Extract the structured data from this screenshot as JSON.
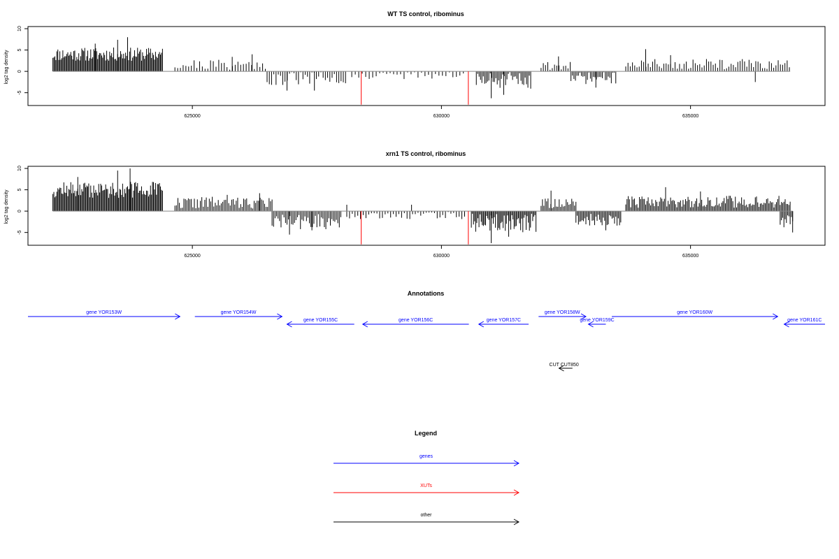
{
  "chart_data": [
    {
      "type": "bar",
      "title": "WT TS control, ribominus",
      "ylabel": "log2 tag density",
      "xlabel": "",
      "xlim": [
        621700,
        637700
      ],
      "ylim": [
        -8,
        10.5
      ],
      "yticks": [
        10,
        5,
        0,
        -5
      ],
      "ytick_labels": [
        "10",
        "5",
        "0",
        "-5"
      ],
      "xticks": [
        625000,
        630000,
        635000
      ],
      "xtick_labels": [
        "625000",
        "630000",
        "635000"
      ],
      "grid": false,
      "baseline_color": "#888888",
      "bar_color": "#000000",
      "highlight_color": "#ff0000",
      "segments": [
        {
          "start": 622200,
          "end": 624400,
          "mean": 4.0,
          "amp": 1.6,
          "step": 20,
          "seed": 11,
          "peaks": [
            [
              623700,
              8.0
            ],
            [
              623500,
              7.4
            ],
            [
              623050,
              6.5
            ]
          ]
        },
        {
          "start": 624650,
          "end": 626500,
          "mean": 1.6,
          "amp": 1.3,
          "step": 55,
          "seed": 21,
          "peaks": [
            [
              626200,
              4.0
            ],
            [
              625800,
              3.4
            ]
          ]
        },
        {
          "start": 626500,
          "end": 628100,
          "mean": -1.7,
          "amp": 1.6,
          "step": 45,
          "seed": 31,
          "peaks": [
            [
              626900,
              -4.5
            ],
            [
              627450,
              -4.5
            ]
          ]
        },
        {
          "start": 628200,
          "end": 630500,
          "mean": -0.9,
          "amp": 0.9,
          "step": 70,
          "seed": 41,
          "peaks": []
        },
        {
          "start": 630700,
          "end": 631800,
          "mean": -2.2,
          "amp": 2.0,
          "step": 28,
          "seed": 51,
          "peaks": [
            [
              631000,
              -6.3
            ],
            [
              631250,
              -5.5
            ]
          ]
        },
        {
          "start": 632000,
          "end": 632600,
          "mean": 1.3,
          "amp": 1.0,
          "step": 45,
          "seed": 61,
          "peaks": [
            [
              632350,
              3.5
            ]
          ]
        },
        {
          "start": 632600,
          "end": 633500,
          "mean": -1.6,
          "amp": 1.4,
          "step": 30,
          "seed": 71,
          "peaks": [
            [
              633100,
              -3.8
            ]
          ]
        },
        {
          "start": 633700,
          "end": 637000,
          "mean": 1.7,
          "amp": 1.2,
          "step": 45,
          "seed": 81,
          "peaks": [
            [
              634100,
              5.2
            ],
            [
              634600,
              3.8
            ],
            [
              636300,
              -2.5
            ]
          ]
        }
      ],
      "highlights": [
        {
          "x": 628390,
          "y": -7.8
        },
        {
          "x": 630540,
          "y": -7.8
        }
      ]
    },
    {
      "type": "bar",
      "title": "xrn1 TS control, ribominus",
      "ylabel": "log2 tag density",
      "xlabel": "",
      "xlim": [
        621700,
        637700
      ],
      "ylim": [
        -8,
        10.5
      ],
      "yticks": [
        10,
        5,
        0,
        -5
      ],
      "ytick_labels": [
        "10",
        "5",
        "0",
        "-5"
      ],
      "xticks": [
        625000,
        630000,
        635000
      ],
      "xtick_labels": [
        "625000",
        "630000",
        "635000"
      ],
      "grid": false,
      "baseline_color": "#888888",
      "bar_color": "#000000",
      "highlight_color": "#ff0000",
      "segments": [
        {
          "start": 622200,
          "end": 624400,
          "mean": 5.0,
          "amp": 1.9,
          "step": 20,
          "seed": 12,
          "peaks": [
            [
              623750,
              10.0
            ],
            [
              623500,
              9.5
            ],
            [
              622700,
              8.0
            ]
          ]
        },
        {
          "start": 624650,
          "end": 626600,
          "mean": 2.0,
          "amp": 1.4,
          "step": 30,
          "seed": 22,
          "peaks": [
            [
              626350,
              4.2
            ],
            [
              625700,
              3.8
            ]
          ]
        },
        {
          "start": 626600,
          "end": 628000,
          "mean": -2.5,
          "amp": 1.8,
          "step": 30,
          "seed": 32,
          "peaks": [
            [
              626950,
              -5.5
            ],
            [
              627400,
              -4.5
            ]
          ]
        },
        {
          "start": 628100,
          "end": 630500,
          "mean": -0.8,
          "amp": 1.1,
          "step": 55,
          "seed": 42,
          "peaks": [
            [
              628100,
              1.5
            ],
            [
              629400,
              1.5
            ]
          ]
        },
        {
          "start": 630600,
          "end": 631900,
          "mean": -2.8,
          "amp": 2.2,
          "step": 22,
          "seed": 52,
          "peaks": [
            [
              631000,
              -7.5
            ],
            [
              631350,
              -6.0
            ]
          ]
        },
        {
          "start": 632000,
          "end": 632700,
          "mean": 1.8,
          "amp": 1.2,
          "step": 28,
          "seed": 62,
          "peaks": [
            [
              632200,
              4.8
            ]
          ]
        },
        {
          "start": 632700,
          "end": 633600,
          "mean": -2.0,
          "amp": 1.5,
          "step": 25,
          "seed": 72,
          "peaks": [
            [
              633300,
              -4.5
            ]
          ]
        },
        {
          "start": 633700,
          "end": 637000,
          "mean": 2.2,
          "amp": 1.4,
          "step": 25,
          "seed": 82,
          "peaks": [
            [
              634500,
              5.6
            ],
            [
              635200,
              4.6
            ]
          ]
        },
        {
          "start": 636800,
          "end": 637050,
          "mean": -2.5,
          "amp": 1.5,
          "step": 25,
          "seed": 92,
          "peaks": [
            [
              637050,
              -5.0
            ]
          ]
        }
      ],
      "highlights": [
        {
          "x": 628390,
          "y": -7.8
        },
        {
          "x": 630540,
          "y": -7.8
        }
      ]
    }
  ],
  "annotations": {
    "title": "Annotations",
    "features": [
      {
        "label": "gene YOR153W",
        "start": 621700,
        "end": 624750,
        "strand": "+",
        "row": 0,
        "color": "#0000ff"
      },
      {
        "label": "gene YOR154W",
        "start": 625050,
        "end": 626800,
        "strand": "+",
        "row": 0,
        "color": "#0000ff"
      },
      {
        "label": "gene YOR155C",
        "start": 626900,
        "end": 628250,
        "strand": "-",
        "row": 1,
        "color": "#0000ff"
      },
      {
        "label": "gene YOR156C",
        "start": 628420,
        "end": 630550,
        "strand": "-",
        "row": 1,
        "color": "#0000ff"
      },
      {
        "label": "gene YOR157C",
        "start": 630750,
        "end": 631750,
        "strand": "-",
        "row": 1,
        "color": "#0000ff"
      },
      {
        "label": "gene YOR158W",
        "start": 631950,
        "end": 632900,
        "strand": "+",
        "row": 0,
        "color": "#0000ff"
      },
      {
        "label": "gene YOR159C",
        "start": 632950,
        "end": 633300,
        "strand": "-",
        "row": 1,
        "color": "#0000ff"
      },
      {
        "label": "gene YOR160W",
        "start": 633420,
        "end": 636750,
        "strand": "+",
        "row": 0,
        "color": "#0000ff"
      },
      {
        "label": "gene YOR161C",
        "start": 636880,
        "end": 637700,
        "strand": "-",
        "row": 1,
        "color": "#0000ff"
      },
      {
        "label": "CUT CUT850",
        "start": 632360,
        "end": 632630,
        "strand": "-",
        "row": 2,
        "color": "#000000"
      }
    ]
  },
  "legend": {
    "title": "Legend",
    "items": [
      {
        "label": "genes",
        "color": "#0000ff"
      },
      {
        "label": "XUTs",
        "color": "#ff0000"
      },
      {
        "label": "other",
        "color": "#000000"
      }
    ]
  }
}
